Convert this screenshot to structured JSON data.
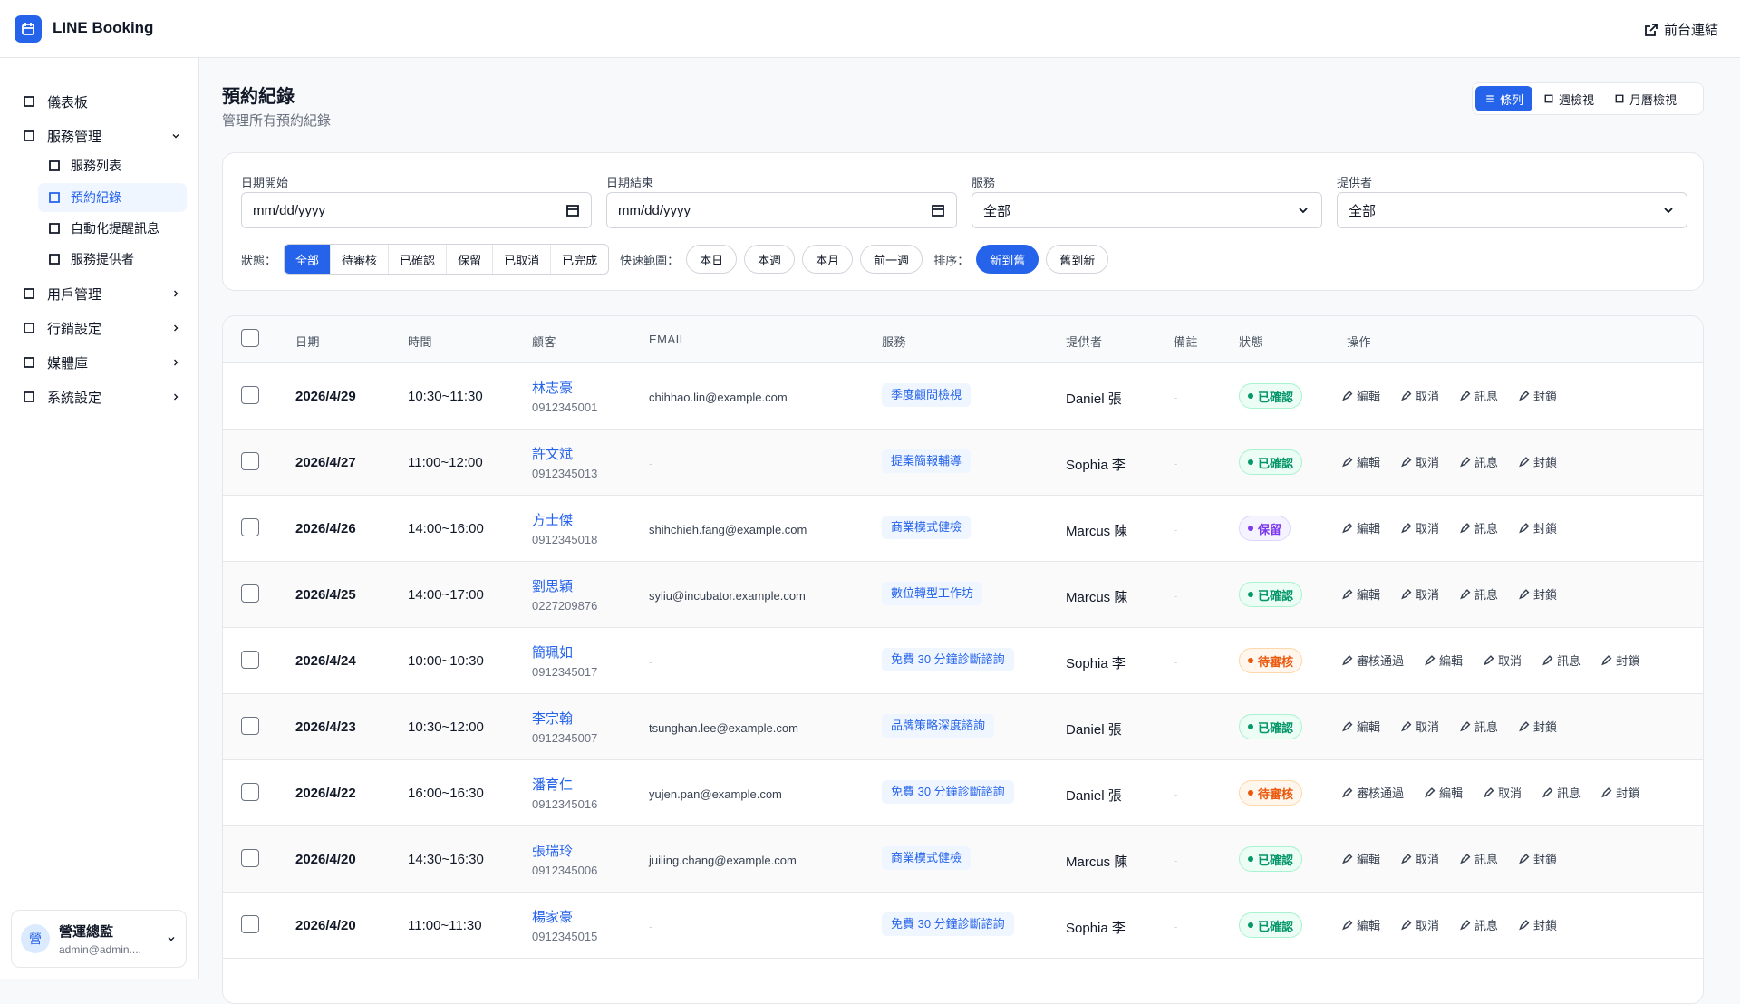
{
  "header": {
    "brand": "LINE Booking",
    "link": "前台連結"
  },
  "sidebar": {
    "items": [
      {
        "label": "儀表板"
      },
      {
        "label": "服務管理",
        "children": [
          "服務列表",
          "預約紀錄",
          "自動化提醒訊息",
          "服務提供者"
        ]
      },
      {
        "label": "用戶管理"
      },
      {
        "label": "行銷設定"
      },
      {
        "label": "媒體庫"
      },
      {
        "label": "系統設定"
      }
    ],
    "user": {
      "avatar": "營",
      "name": "營運總監",
      "email": "admin@admin...."
    }
  },
  "page": {
    "title": "預約紀錄",
    "subtitle": "管理所有預約紀錄",
    "views": [
      "條列",
      "週檢視",
      "月曆檢視"
    ]
  },
  "filters": {
    "fields": [
      {
        "label": "日期開始",
        "value": "mm/dd/yyyy"
      },
      {
        "label": "日期結束",
        "value": "mm/dd/yyyy"
      },
      {
        "label": "服務",
        "value": "全部"
      },
      {
        "label": "提供者",
        "value": "全部"
      }
    ],
    "status_label": "狀態：",
    "status_options": [
      "全部",
      "待審核",
      "已確認",
      "保留",
      "已取消",
      "已完成"
    ],
    "quick_label": "快速範圍：",
    "quick_options": [
      "本日",
      "本週",
      "本月",
      "前一週"
    ],
    "sort_label": "排序：",
    "sort_options": [
      "新到舊",
      "舊到新"
    ]
  },
  "table": {
    "columns": [
      "日期",
      "時間",
      "顧客",
      "EMAIL",
      "服務",
      "提供者",
      "備註",
      "狀態",
      "操作"
    ],
    "rows": [
      {
        "date": "2026/4/29",
        "time": "10:30~11:30",
        "name": "林志豪",
        "phone": "0912345001",
        "email": "chihhao.lin@example.com",
        "service": "季度顧問檢視",
        "provider": "Daniel 張",
        "note": "-",
        "status": "已確認",
        "actions": [
          "編輯",
          "取消",
          "訊息",
          "封鎖"
        ]
      },
      {
        "date": "2026/4/27",
        "time": "11:00~12:00",
        "name": "許文斌",
        "phone": "0912345013",
        "email": "-",
        "service": "提案簡報輔導",
        "provider": "Sophia 李",
        "note": "-",
        "status": "已確認",
        "actions": [
          "編輯",
          "取消",
          "訊息",
          "封鎖"
        ]
      },
      {
        "date": "2026/4/26",
        "time": "14:00~16:00",
        "name": "方士傑",
        "phone": "0912345018",
        "email": "shihchieh.fang@example.com",
        "service": "商業模式健檢",
        "provider": "Marcus 陳",
        "note": "-",
        "status": "保留",
        "actions": [
          "編輯",
          "取消",
          "訊息",
          "封鎖"
        ]
      },
      {
        "date": "2026/4/25",
        "time": "14:00~17:00",
        "name": "劉思穎",
        "phone": "0227209876",
        "email": "syliu@incubator.example.com",
        "service": "數位轉型工作坊",
        "provider": "Marcus 陳",
        "note": "-",
        "status": "已確認",
        "actions": [
          "編輯",
          "取消",
          "訊息",
          "封鎖"
        ]
      },
      {
        "date": "2026/4/24",
        "time": "10:00~10:30",
        "name": "簡珮如",
        "phone": "0912345017",
        "email": "-",
        "service": "免費 30 分鐘診斷諮詢",
        "provider": "Sophia 李",
        "note": "-",
        "status": "待審核",
        "actions": [
          "審核通過",
          "編輯",
          "取消",
          "訊息",
          "封鎖"
        ]
      },
      {
        "date": "2026/4/23",
        "time": "10:30~12:00",
        "name": "李宗翰",
        "phone": "0912345007",
        "email": "tsunghan.lee@example.com",
        "service": "品牌策略深度諮詢",
        "provider": "Daniel 張",
        "note": "-",
        "status": "已確認",
        "actions": [
          "編輯",
          "取消",
          "訊息",
          "封鎖"
        ]
      },
      {
        "date": "2026/4/22",
        "time": "16:00~16:30",
        "name": "潘育仁",
        "phone": "0912345016",
        "email": "yujen.pan@example.com",
        "service": "免費 30 分鐘診斷諮詢",
        "provider": "Daniel 張",
        "note": "-",
        "status": "待審核",
        "actions": [
          "審核通過",
          "編輯",
          "取消",
          "訊息",
          "封鎖"
        ]
      },
      {
        "date": "2026/4/20",
        "time": "14:30~16:30",
        "name": "張瑞玲",
        "phone": "0912345006",
        "email": "juiling.chang@example.com",
        "service": "商業模式健檢",
        "provider": "Marcus 陳",
        "note": "-",
        "status": "已確認",
        "actions": [
          "編輯",
          "取消",
          "訊息",
          "封鎖"
        ]
      },
      {
        "date": "2026/4/20",
        "time": "11:00~11:30",
        "name": "楊家豪",
        "phone": "0912345015",
        "email": "-",
        "service": "免費 30 分鐘診斷諮詢",
        "provider": "Sophia 李",
        "note": "-",
        "status": "已確認",
        "actions": [
          "編輯",
          "取消",
          "訊息",
          "封鎖"
        ]
      }
    ]
  }
}
